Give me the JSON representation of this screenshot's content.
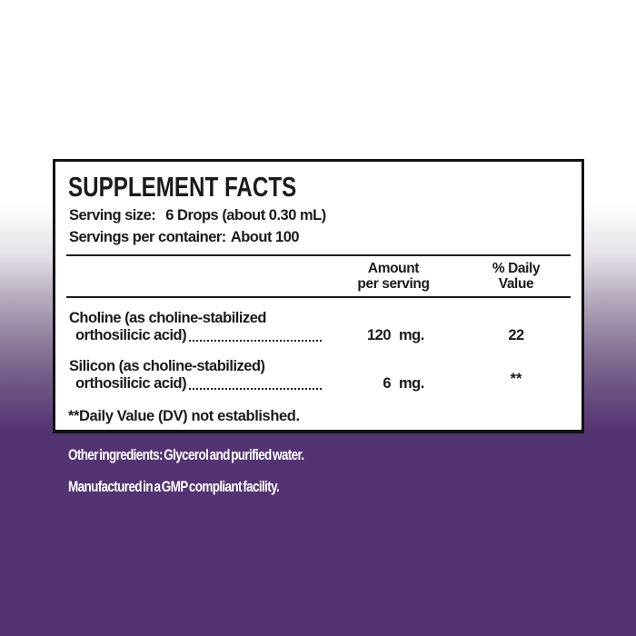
{
  "colors": {
    "background_purple": "#543373",
    "panel_background": "#ffffff",
    "panel_border": "#121212",
    "text_dark": "#1b1b1b",
    "text_light": "#ffffff"
  },
  "supplement_facts": {
    "title": "SUPPLEMENT FACTS",
    "serving_size": {
      "label": "Serving size:",
      "value": "6 Drops (about 0.30 mL)"
    },
    "servings_per_container": {
      "label": "Servings per container:",
      "value": "About 100"
    },
    "columns": {
      "amount": [
        "Amount",
        "per serving"
      ],
      "daily_value": [
        "% Daily",
        "Value"
      ]
    },
    "rows": [
      {
        "name_line1": "Choline (as choline-stabilized",
        "name_line2": "orthosilicic acid)",
        "amount_number": "120",
        "amount_unit": "mg.",
        "daily_value": "22"
      },
      {
        "name_line1": "Silicon (as choline-stabilized)",
        "name_line2": "orthosilicic acid)",
        "amount_number": "6",
        "amount_unit": "mg.",
        "daily_value": "**"
      }
    ],
    "footnote": "**Daily Value (DV) not established."
  },
  "other_info": {
    "other_ingredients": "Other ingredients: Glycerol and purified water.",
    "manufactured": "Manufactured in a GMP compliant facility."
  }
}
